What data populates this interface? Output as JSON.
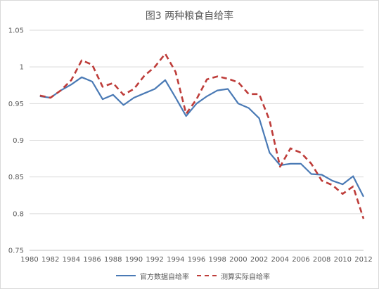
{
  "chart_data": {
    "type": "line",
    "title": "图3 两种粮食自给率",
    "xlabel": "",
    "ylabel": "",
    "xlim": [
      1980,
      2012
    ],
    "ylim": [
      0.75,
      1.05
    ],
    "x_ticks": [
      "1980",
      "1982",
      "1984",
      "1986",
      "1988",
      "1990",
      "1992",
      "1994",
      "1996",
      "1998",
      "2000",
      "2002",
      "2004",
      "2006",
      "2008",
      "2010",
      "2012"
    ],
    "y_ticks": [
      "0.75",
      "0.8",
      "0.85",
      "0.9",
      "0.95",
      "1",
      "1.05"
    ],
    "grid": "horizontal",
    "legend_position": "bottom",
    "x": [
      1981,
      1982,
      1983,
      1984,
      1985,
      1986,
      1987,
      1988,
      1989,
      1990,
      1991,
      1992,
      1993,
      1994,
      1995,
      1996,
      1997,
      1998,
      1999,
      2000,
      2001,
      2002,
      2003,
      2004,
      2005,
      2006,
      2007,
      2008,
      2009,
      2010,
      2011,
      2012
    ],
    "series": [
      {
        "name": "官方数据自给率",
        "color": "#4a7ab5",
        "style": "solid",
        "values": [
          0.96,
          0.958,
          0.968,
          0.976,
          0.986,
          0.98,
          0.956,
          0.962,
          0.948,
          0.958,
          0.964,
          0.97,
          0.982,
          0.958,
          0.933,
          0.95,
          0.96,
          0.968,
          0.97,
          0.95,
          0.944,
          0.93,
          0.883,
          0.866,
          0.868,
          0.868,
          0.854,
          0.853,
          0.845,
          0.84,
          0.851,
          0.823
        ]
      },
      {
        "name": "测算实际自给率",
        "color": "#be3d3a",
        "style": "dashed",
        "values": [
          0.961,
          0.958,
          0.968,
          0.982,
          1.009,
          1.003,
          0.973,
          0.978,
          0.962,
          0.97,
          0.988,
          1.0,
          1.018,
          0.993,
          0.936,
          0.956,
          0.983,
          0.987,
          0.984,
          0.979,
          0.963,
          0.963,
          0.927,
          0.864,
          0.889,
          0.883,
          0.868,
          0.845,
          0.839,
          0.827,
          0.837,
          0.793
        ]
      }
    ]
  }
}
